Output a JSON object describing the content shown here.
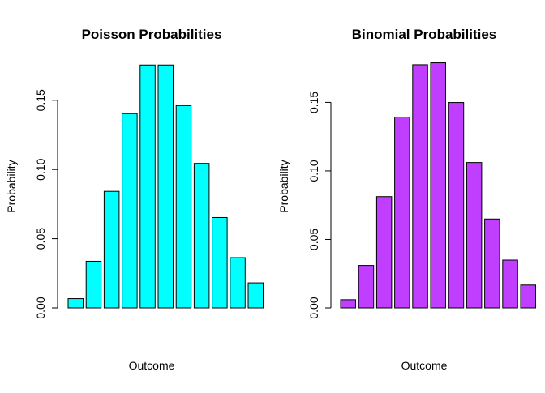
{
  "chart_data": [
    {
      "type": "bar",
      "title": "Poisson Probabilities",
      "xlabel": "Outcome",
      "ylabel": "Probability",
      "ylim": [
        0,
        0.18
      ],
      "yticks": [
        "0.00",
        "0.05",
        "0.10",
        "0.15"
      ],
      "bar_color": "#00FFFF",
      "grid": false,
      "values": [
        0.0067,
        0.0337,
        0.0842,
        0.1404,
        0.1755,
        0.1755,
        0.1462,
        0.1044,
        0.0653,
        0.0363,
        0.0181
      ]
    },
    {
      "type": "bar",
      "title": "Binomial Probabilities",
      "xlabel": "Outcome",
      "ylabel": "Probability",
      "ylim": [
        0,
        0.18
      ],
      "yticks": [
        "0.00",
        "0.05",
        "0.10",
        "0.15"
      ],
      "bar_color": "#BF3EFF",
      "grid": false,
      "values": [
        0.006,
        0.031,
        0.0812,
        0.1393,
        0.1775,
        0.1789,
        0.1499,
        0.1061,
        0.0649,
        0.0349,
        0.0167
      ]
    }
  ]
}
